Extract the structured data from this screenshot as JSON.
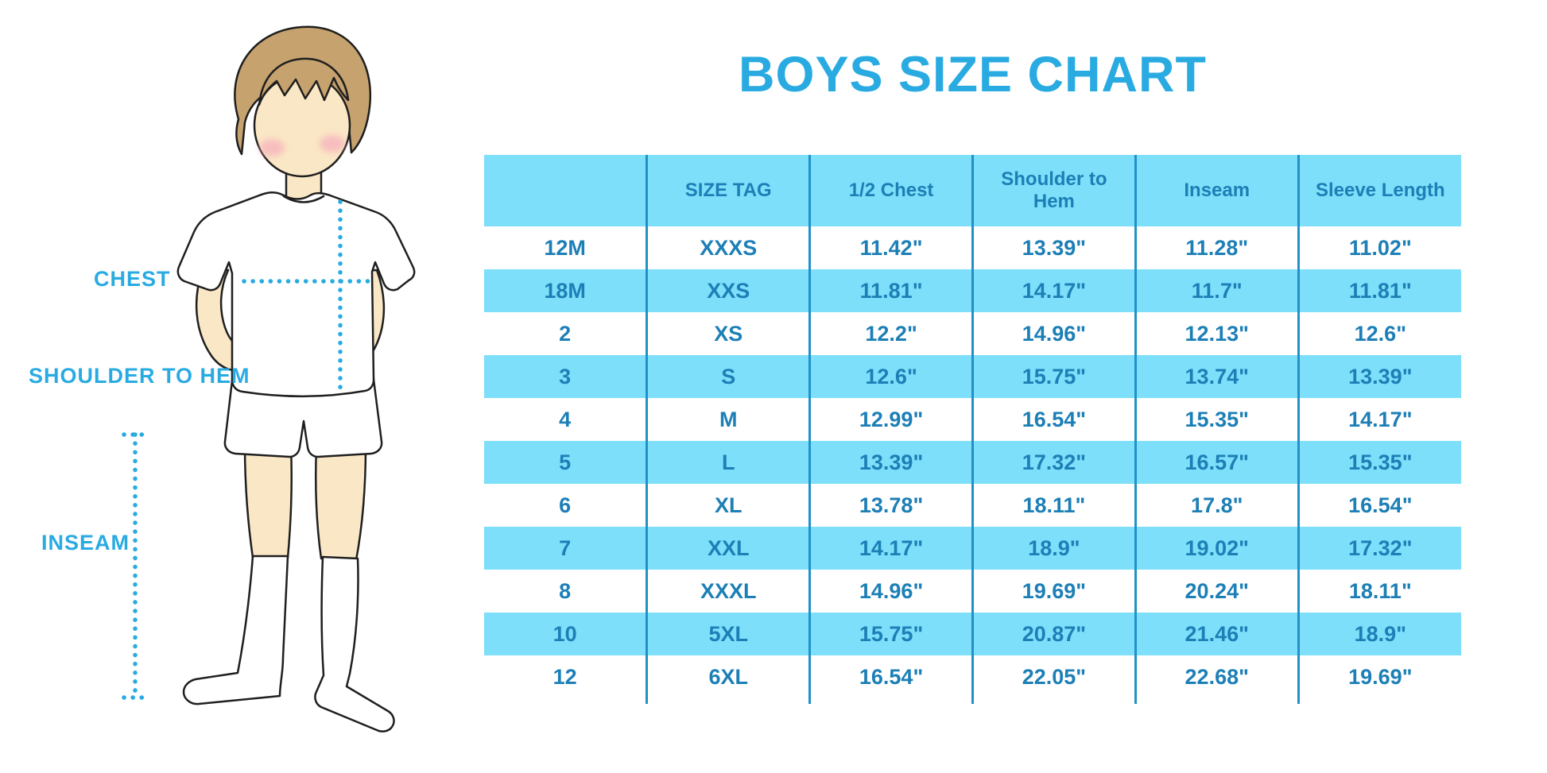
{
  "title": "BOYS SIZE CHART",
  "figure_labels": {
    "chest": "CHEST",
    "shoulder_to_hem": "SHOULDER TO HEM",
    "inseam": "INSEAM"
  },
  "colors": {
    "accent_blue": "#29ABE2",
    "stripe_blue": "#7DDFFA",
    "grid_line_blue": "#2092C8",
    "table_text_blue": "#1C7FB6",
    "skin": "#FAE7C5",
    "hair": "#C6A26E",
    "cheek": "#F5A9BB",
    "outline": "#1F1F1F"
  },
  "chart_data": {
    "type": "table",
    "title": "BOYS SIZE CHART",
    "units": "inches",
    "columns": [
      "",
      "SIZE TAG",
      "1/2 Chest",
      "Shoulder to Hem",
      "Inseam",
      "Sleeve Length"
    ],
    "rows": [
      [
        "12M",
        "XXXS",
        "11.42\"",
        "13.39\"",
        "11.28\"",
        "11.02\""
      ],
      [
        "18M",
        "XXS",
        "11.81\"",
        "14.17\"",
        "11.7\"",
        "11.81\""
      ],
      [
        "2",
        "XS",
        "12.2\"",
        "14.96\"",
        "12.13\"",
        "12.6\""
      ],
      [
        "3",
        "S",
        "12.6\"",
        "15.75\"",
        "13.74\"",
        "13.39\""
      ],
      [
        "4",
        "M",
        "12.99\"",
        "16.54\"",
        "15.35\"",
        "14.17\""
      ],
      [
        "5",
        "L",
        "13.39\"",
        "17.32\"",
        "16.57\"",
        "15.35\""
      ],
      [
        "6",
        "XL",
        "13.78\"",
        "18.11\"",
        "17.8\"",
        "16.54\""
      ],
      [
        "7",
        "XXL",
        "14.17\"",
        "18.9\"",
        "19.02\"",
        "17.32\""
      ],
      [
        "8",
        "XXXL",
        "14.96\"",
        "19.69\"",
        "20.24\"",
        "18.11\""
      ],
      [
        "10",
        "5XL",
        "15.75\"",
        "20.87\"",
        "21.46\"",
        "18.9\""
      ],
      [
        "12",
        "6XL",
        "16.54\"",
        "22.05\"",
        "22.68\"",
        "19.69\""
      ]
    ],
    "layout_hints": {
      "header_background": "#7DDFFA",
      "row_striping": "rows 18M,3,5,7,10 light blue; others white",
      "column_separators": "vertical blue lines between all columns"
    }
  }
}
